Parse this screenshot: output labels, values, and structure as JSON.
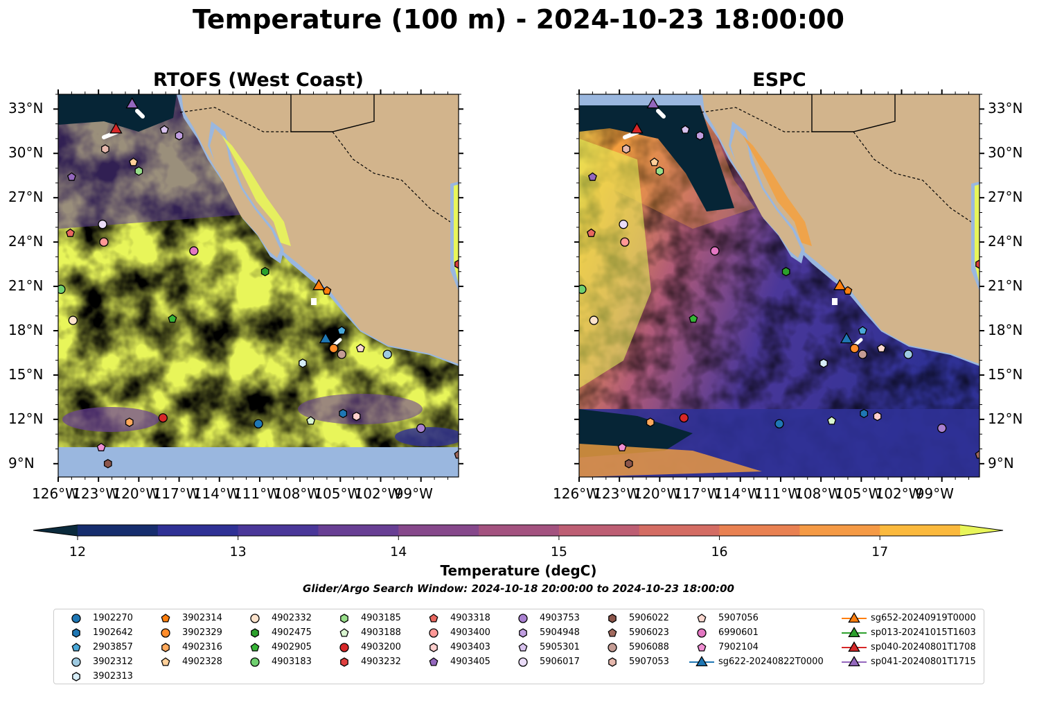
{
  "title": "Temperature (100 m) - 2024-10-23 18:00:00",
  "panels": [
    {
      "id": "rtofs",
      "title": "RTOFS (West Coast)"
    },
    {
      "id": "espc",
      "title": "ESPC"
    }
  ],
  "lat_ticks": [
    "33°N",
    "30°N",
    "27°N",
    "24°N",
    "21°N",
    "18°N",
    "15°N",
    "12°N",
    "9°N"
  ],
  "lon_ticks": [
    "126°W",
    "123°W",
    "120°W",
    "117°W",
    "114°W",
    "111°W",
    "108°W",
    "105°W",
    "102°W",
    "99°W"
  ],
  "colorbar": {
    "label": "Temperature (degC)",
    "ticks": [
      "12",
      "13",
      "14",
      "15",
      "16",
      "17"
    ],
    "colors": [
      "#0b2a3c",
      "#162d6e",
      "#2f3195",
      "#4a3799",
      "#683f94",
      "#86488b",
      "#a3527f",
      "#bd5e73",
      "#d46c63",
      "#e98152",
      "#f59a45",
      "#fbb93d",
      "#e8f55a"
    ]
  },
  "window_note": "Glider/Argo Search Window: 2024-10-18 20:00:00 to 2024-10-23 18:00:00",
  "colors": {
    "land": "#d2b48c",
    "shelf": "#9ab7df",
    "warm": "#e8f55a",
    "cold": "#062536"
  },
  "legend": [
    {
      "label": "1902270",
      "marker": "circle",
      "color": "#1f77b4"
    },
    {
      "label": "1902642",
      "marker": "hexagon",
      "color": "#1f77b4"
    },
    {
      "label": "2903857",
      "marker": "pentagon",
      "color": "#4aa8d8"
    },
    {
      "label": "3902312",
      "marker": "circle",
      "color": "#9ecae1"
    },
    {
      "label": "3902313",
      "marker": "hexagon",
      "color": "#d7eef8"
    },
    {
      "label": "3902314",
      "marker": "pentagon",
      "color": "#ff7f0e"
    },
    {
      "label": "3902329",
      "marker": "circle",
      "color": "#ff8c2a"
    },
    {
      "label": "4902316",
      "marker": "hexagon",
      "color": "#ffa95c"
    },
    {
      "label": "4902328",
      "marker": "pentagon",
      "color": "#ffd09a"
    },
    {
      "label": "4902332",
      "marker": "circle",
      "color": "#fde3cc"
    },
    {
      "label": "4902475",
      "marker": "hexagon",
      "color": "#2ca02c"
    },
    {
      "label": "4902905",
      "marker": "pentagon",
      "color": "#37b437"
    },
    {
      "label": "4903183",
      "marker": "circle",
      "color": "#6fcf6f"
    },
    {
      "label": "4903185",
      "marker": "hexagon",
      "color": "#98df8a"
    },
    {
      "label": "4903188",
      "marker": "pentagon",
      "color": "#d9f5d0"
    },
    {
      "label": "4903200",
      "marker": "circle",
      "color": "#d62728"
    },
    {
      "label": "4903232",
      "marker": "hexagon",
      "color": "#e0403f"
    },
    {
      "label": "4903318",
      "marker": "pentagon",
      "color": "#e8675f"
    },
    {
      "label": "4903400",
      "marker": "circle",
      "color": "#ff9896"
    },
    {
      "label": "4903403",
      "marker": "hexagon",
      "color": "#ffcfcd"
    },
    {
      "label": "4903405",
      "marker": "pentagon",
      "color": "#9467bd"
    },
    {
      "label": "4903753",
      "marker": "circle",
      "color": "#a980d0"
    },
    {
      "label": "5904948",
      "marker": "hexagon",
      "color": "#c09ee0"
    },
    {
      "label": "5905301",
      "marker": "pentagon",
      "color": "#d8c2ee"
    },
    {
      "label": "5906017",
      "marker": "circle",
      "color": "#eadcf8"
    },
    {
      "label": "5906022",
      "marker": "hexagon",
      "color": "#8c564b"
    },
    {
      "label": "5906023",
      "marker": "pentagon",
      "color": "#a26a5e"
    },
    {
      "label": "5906088",
      "marker": "circle",
      "color": "#c49c94"
    },
    {
      "label": "5907053",
      "marker": "hexagon",
      "color": "#e6b8ad"
    },
    {
      "label": "5907056",
      "marker": "pentagon",
      "color": "#fbd8d0"
    },
    {
      "label": "6990601",
      "marker": "circle",
      "color": "#e377c2"
    },
    {
      "label": "7902104",
      "marker": "pentagon",
      "color": "#f08fd3"
    },
    {
      "label": "sg622-20240822T0000",
      "marker": "triangle",
      "color": "#1f77b4"
    },
    {
      "label": "sg652-20240919T0000",
      "marker": "triangle",
      "color": "#ff7f0e"
    },
    {
      "label": "sp013-20241015T1603",
      "marker": "triangle",
      "color": "#2ca02c"
    },
    {
      "label": "sp040-20240801T1708",
      "marker": "triangle",
      "color": "#d62728"
    },
    {
      "label": "sp041-20240801T1715",
      "marker": "triangle",
      "color": "#9467bd"
    }
  ],
  "map_markers": [
    {
      "id": "1902270",
      "marker": "circle",
      "color": "#1f77b4",
      "lon": -111.1,
      "lat": 11.7
    },
    {
      "id": "1902642",
      "marker": "hexagon",
      "color": "#1f77b4",
      "lon": -104.8,
      "lat": 12.4
    },
    {
      "id": "2903857",
      "marker": "pentagon",
      "color": "#4aa8d8",
      "lon": -104.9,
      "lat": 18.0
    },
    {
      "id": "3902312",
      "marker": "circle",
      "color": "#9ecae1",
      "lon": -101.5,
      "lat": 16.4
    },
    {
      "id": "3902313",
      "marker": "hexagon",
      "color": "#d7eef8",
      "lon": -107.8,
      "lat": 15.8
    },
    {
      "id": "3902314",
      "marker": "pentagon",
      "color": "#ff7f0e",
      "lon": -106.0,
      "lat": 20.7
    },
    {
      "id": "3902329",
      "marker": "circle",
      "color": "#ff8c2a",
      "lon": -105.5,
      "lat": 16.8
    },
    {
      "id": "4902316",
      "marker": "hexagon",
      "color": "#ffa95c",
      "lon": -120.7,
      "lat": 11.8
    },
    {
      "id": "4902328",
      "marker": "pentagon",
      "color": "#ffd09a",
      "lon": -120.4,
      "lat": 29.4
    },
    {
      "id": "4902332",
      "marker": "circle",
      "color": "#fde3cc",
      "lon": -124.9,
      "lat": 18.7
    },
    {
      "id": "4902475",
      "marker": "hexagon",
      "color": "#2ca02c",
      "lon": -110.6,
      "lat": 22.0
    },
    {
      "id": "4902905",
      "marker": "pentagon",
      "color": "#37b437",
      "lon": -117.5,
      "lat": 18.8
    },
    {
      "id": "4903183",
      "marker": "circle",
      "color": "#6fcf6f",
      "lon": -125.8,
      "lat": 20.8
    },
    {
      "id": "4903185",
      "marker": "hexagon",
      "color": "#98df8a",
      "lon": -120.0,
      "lat": 28.8
    },
    {
      "id": "4903188",
      "marker": "pentagon",
      "color": "#d9f5d0",
      "lon": -107.2,
      "lat": 11.9
    },
    {
      "id": "4903200",
      "marker": "circle",
      "color": "#d62728",
      "lon": -118.2,
      "lat": 12.1
    },
    {
      "id": "4903232",
      "marker": "hexagon",
      "color": "#e0403f",
      "lon": -96.2,
      "lat": 22.5
    },
    {
      "id": "4903318",
      "marker": "pentagon",
      "color": "#e8675f",
      "lon": -125.1,
      "lat": 24.6
    },
    {
      "id": "4903400",
      "marker": "circle",
      "color": "#ff9896",
      "lon": -122.6,
      "lat": 24.0
    },
    {
      "id": "4903403",
      "marker": "hexagon",
      "color": "#ffcfcd",
      "lon": -103.8,
      "lat": 12.2
    },
    {
      "id": "4903405",
      "marker": "pentagon",
      "color": "#9467bd",
      "lon": -125.0,
      "lat": 28.4
    },
    {
      "id": "4903753",
      "marker": "circle",
      "color": "#a980d0",
      "lon": -99.0,
      "lat": 11.4
    },
    {
      "id": "5904948",
      "marker": "hexagon",
      "color": "#c09ee0",
      "lon": -117.0,
      "lat": 31.2
    },
    {
      "id": "5905301",
      "marker": "pentagon",
      "color": "#d8c2ee",
      "lon": -118.1,
      "lat": 31.6
    },
    {
      "id": "5906017",
      "marker": "circle",
      "color": "#eadcf8",
      "lon": -122.7,
      "lat": 25.2
    },
    {
      "id": "5906022",
      "marker": "hexagon",
      "color": "#8c564b",
      "lon": -122.3,
      "lat": 9.0
    },
    {
      "id": "5906023",
      "marker": "pentagon",
      "color": "#a26a5e",
      "lon": -96.2,
      "lat": 9.6
    },
    {
      "id": "5906088",
      "marker": "circle",
      "color": "#c49c94",
      "lon": -104.9,
      "lat": 16.4
    },
    {
      "id": "5907053",
      "marker": "hexagon",
      "color": "#e6b8ad",
      "lon": -122.5,
      "lat": 30.3
    },
    {
      "id": "5907056",
      "marker": "pentagon",
      "color": "#fbd8d0",
      "lon": -103.5,
      "lat": 16.8
    },
    {
      "id": "6990601",
      "marker": "circle",
      "color": "#e377c2",
      "lon": -115.9,
      "lat": 23.4
    },
    {
      "id": "7902104",
      "marker": "pentagon",
      "color": "#f08fd3",
      "lon": -122.8,
      "lat": 10.1
    },
    {
      "id": "sg622-20240822T0000",
      "marker": "triangle",
      "color": "#1f77b4",
      "lon": -106.1,
      "lat": 17.4
    },
    {
      "id": "sg652-20240919T0000",
      "marker": "triangle",
      "color": "#ff7f0e",
      "lon": -106.6,
      "lat": 21.0
    },
    {
      "id": "sp040-20240801T1708",
      "marker": "triangle",
      "color": "#d62728",
      "lon": -121.7,
      "lat": 31.6
    },
    {
      "id": "sp041-20240801T1715",
      "marker": "triangle",
      "color": "#9467bd",
      "lon": -120.5,
      "lat": 33.3
    }
  ]
}
